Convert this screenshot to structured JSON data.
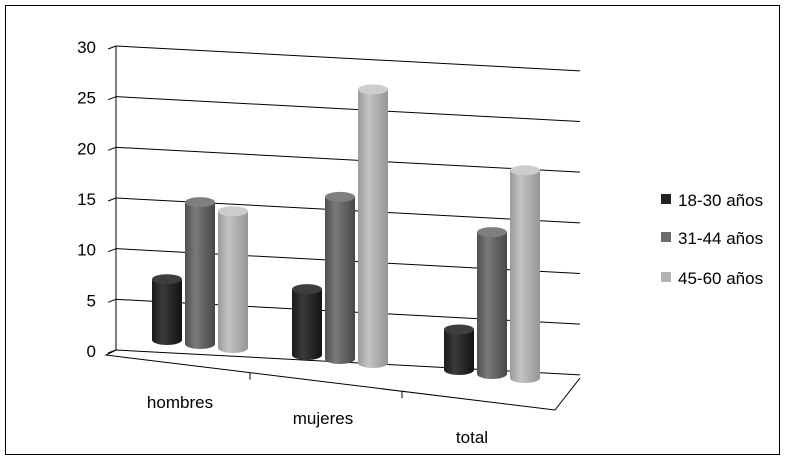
{
  "chart_data": {
    "type": "bar",
    "variant": "3d-cylinder-clustered",
    "categories": [
      "hombres",
      "mujeres",
      "total"
    ],
    "series": [
      {
        "name": "18-30 años",
        "values": [
          6,
          6.5,
          4
        ],
        "color": "#2b2b2b"
      },
      {
        "name": "31-44 años",
        "values": [
          14,
          16,
          14
        ],
        "color": "#6b6b6b"
      },
      {
        "name": "45-60 años",
        "values": [
          13.5,
          27,
          20.5
        ],
        "color": "#b3b3b3"
      }
    ],
    "yticks": [
      "0",
      "5",
      "10",
      "15",
      "20",
      "25",
      "30"
    ],
    "ylim": [
      0,
      30
    ],
    "grid": true,
    "legend_position": "right",
    "title": "",
    "xlabel": "",
    "ylabel": ""
  }
}
